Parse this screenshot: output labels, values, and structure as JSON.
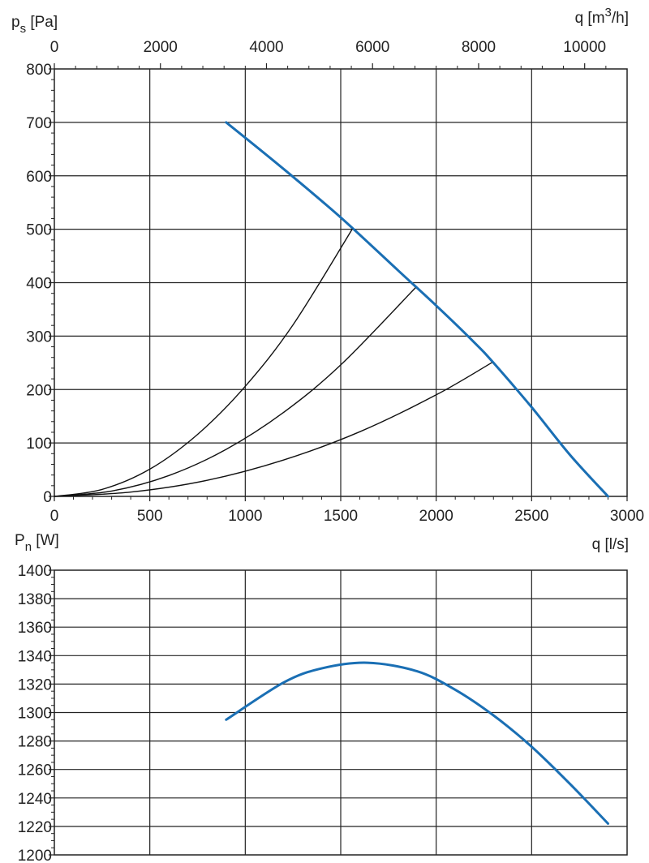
{
  "chart_data": [
    {
      "type": "line",
      "ylabel": {
        "main": "p",
        "sub": "s",
        "unit": " [Pa]"
      },
      "xlabel": "q [l/s]",
      "x2label": {
        "main": "q [m",
        "sup": "3",
        "tail": "/h]"
      },
      "xlim": [
        0,
        3000
      ],
      "ylim": [
        0,
        800
      ],
      "grid": true,
      "x_ticks": [
        "0",
        "500",
        "1000",
        "1500",
        "2000",
        "2500",
        "3000"
      ],
      "y_ticks": [
        "0",
        "100",
        "200",
        "300",
        "400",
        "500",
        "600",
        "700",
        "800"
      ],
      "x2_ticks": [
        "0",
        "2000",
        "4000",
        "6000",
        "8000",
        "10000"
      ],
      "x2_tick_values_m3h": [
        0,
        2000,
        4000,
        6000,
        8000,
        10000
      ],
      "series": [
        {
          "role": "fan curve",
          "color": "#1a6fb4",
          "x": [
            900,
            1200,
            1500,
            1800,
            2000,
            2200,
            2300,
            2500,
            2700,
            2900
          ],
          "y": [
            700,
            613,
            522,
            423,
            357,
            288,
            250,
            167,
            78,
            0
          ]
        },
        {
          "role": "system curve",
          "color": "#111111",
          "x": [
            0,
            250,
            500,
            750,
            1000,
            1250,
            1560
          ],
          "y": [
            0,
            13,
            51,
            116,
            206,
            321,
            500
          ]
        },
        {
          "role": "system curve",
          "color": "#111111",
          "x": [
            0,
            300,
            600,
            900,
            1200,
            1500,
            1890
          ],
          "y": [
            0,
            10,
            39,
            88,
            157,
            246,
            390
          ]
        },
        {
          "role": "system curve",
          "color": "#111111",
          "x": [
            0,
            400,
            800,
            1200,
            1600,
            2000,
            2290
          ],
          "y": [
            0,
            8,
            30,
            68,
            121,
            190,
            250
          ]
        }
      ]
    },
    {
      "type": "line",
      "ylabel": {
        "main": "P",
        "sub": "n",
        "unit": " [W]"
      },
      "xlim": [
        0,
        3000
      ],
      "ylim": [
        1200,
        1400
      ],
      "grid": true,
      "y_ticks": [
        "1200",
        "1220",
        "1240",
        "1260",
        "1280",
        "1300",
        "1320",
        "1340",
        "1360",
        "1380",
        "1400"
      ],
      "series": [
        {
          "role": "power curve",
          "color": "#1a6fb4",
          "x": [
            900,
            1200,
            1400,
            1640,
            1900,
            2100,
            2300,
            2500,
            2700,
            2900
          ],
          "y": [
            1295,
            1321,
            1331,
            1335,
            1329,
            1316,
            1298,
            1276,
            1250,
            1222
          ]
        }
      ]
    }
  ]
}
